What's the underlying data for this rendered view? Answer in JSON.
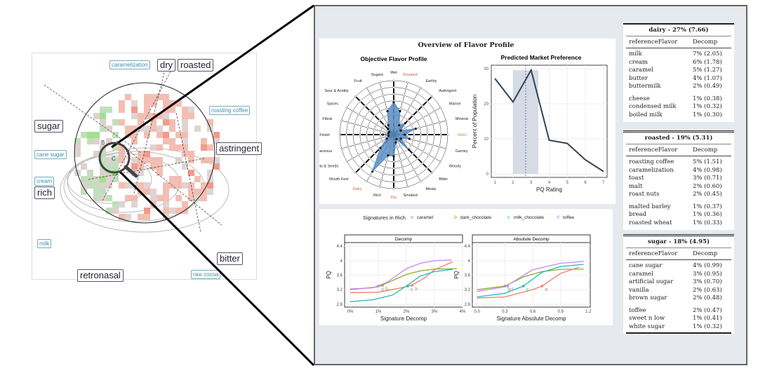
{
  "map": {
    "big_labels": [
      "dry",
      "roasted",
      "sugar",
      "astringent",
      "rich",
      "bitter",
      "retronasal"
    ],
    "small_labels": [
      "caramelization",
      "roasting coffee",
      "cane sugar",
      "cream",
      "milk",
      "raw cocoa"
    ],
    "cluster_labels": [
      "B",
      "C"
    ]
  },
  "panel": {
    "title": "Overview of Flavor Profile"
  },
  "chart_data": [
    {
      "type": "radar",
      "title": "Objective Flavor Profile",
      "axes": [
        "Wet",
        "Roasted",
        "Earthy",
        "Astringent",
        "Marine",
        "Mineral",
        "Retro Nasal",
        "Gamey",
        "Woody",
        "Bitter",
        "Meaty",
        "Smoked",
        "Dry",
        "Rich",
        "Dairy",
        "Mouth Feel",
        "Nuts & Seeds",
        "Herb-baceous",
        "Cold Finish",
        "Fibral",
        "Spices",
        "Sour & Acidity",
        "Fruit",
        "Sugars"
      ],
      "highlighted_axes": {
        "Roasted": "#d9534f",
        "Dry": "#d9534f",
        "Dairy": "#d9534f",
        "Retro Nasal": "#5cc23c"
      },
      "values": [
        0.6,
        0.45,
        0.2,
        0.3,
        0.15,
        0.42,
        0.2,
        0.3,
        0.15,
        0.4,
        0.1,
        0.15,
        0.4,
        0.4,
        0.79,
        0.35,
        0.15,
        0.1,
        0.2,
        0.1,
        0.1,
        0.15,
        0.2,
        0.45
      ],
      "fill": "#5b8fc4"
    },
    {
      "type": "line",
      "title": "Predicted Market Preference",
      "xlabel": "PQ Rating",
      "ylabel": "Percent of Population",
      "x": [
        1,
        2,
        3,
        4,
        5,
        6,
        7
      ],
      "y": [
        27.2,
        20.5,
        29.6,
        9.6,
        8.7,
        4.0,
        0.7
      ],
      "xlim": [
        0.8,
        7.2
      ],
      "ylim": [
        -1,
        31
      ],
      "xticks": [
        1,
        2,
        3,
        4,
        5,
        6,
        7
      ],
      "yticks": [
        0,
        10,
        20,
        30
      ],
      "band": [
        2,
        3.4
      ],
      "dashed_x": 2.7,
      "grid": true,
      "color": "#2f4358"
    },
    {
      "type": "line",
      "facet": "Decomp",
      "xlabel": "Signature Decomp",
      "ylabel": "PQ",
      "xlim": [
        -0.2,
        4.0
      ],
      "ylim": [
        2.72,
        4.5
      ],
      "xticks": [
        "0%",
        "1%",
        "2%",
        "3%",
        "4%"
      ],
      "xtick_values": [
        0,
        1,
        2,
        3,
        4
      ],
      "yticks": [
        2.8,
        3.2,
        3.6,
        4.0,
        4.4
      ],
      "series": [
        {
          "name": "caramel",
          "key": "a",
          "color": "#f07c6c",
          "points": [
            [
              0,
              3.12
            ],
            [
              1,
              3.13
            ],
            [
              1.8,
              3.25
            ],
            [
              2.2,
              3.33
            ],
            [
              2.6,
              3.5
            ],
            [
              3,
              3.75
            ],
            [
              3.65,
              3.97
            ]
          ],
          "marker": [
            2.2,
            3.32
          ]
        },
        {
          "name": "dark_chocolate",
          "key": "b",
          "color": "#8fae2a",
          "points": [
            [
              0,
              3.2
            ],
            [
              1,
              3.28
            ],
            [
              1.5,
              3.45
            ],
            [
              2,
              3.62
            ],
            [
              2.5,
              3.72
            ],
            [
              3,
              3.77
            ],
            [
              3.8,
              3.78
            ]
          ],
          "marker": [
            1.15,
            3.32
          ]
        },
        {
          "name": "milk_chocolate",
          "key": "c",
          "color": "#1fbab8",
          "points": [
            [
              0,
              2.87
            ],
            [
              0.8,
              2.92
            ],
            [
              1.5,
              3.05
            ],
            [
              2,
              3.3
            ],
            [
              2.5,
              3.58
            ],
            [
              3,
              3.7
            ],
            [
              3.65,
              3.76
            ]
          ],
          "marker": [
            2.05,
            3.3
          ]
        },
        {
          "name": "toffee",
          "key": "d",
          "color": "#c387f0",
          "points": [
            [
              0,
              3.22
            ],
            [
              0.8,
              3.25
            ],
            [
              1.3,
              3.4
            ],
            [
              2,
              3.78
            ],
            [
              2.5,
              3.93
            ],
            [
              3,
              4.0
            ],
            [
              3.6,
              4.02
            ]
          ],
          "marker": [
            1.0,
            3.3
          ]
        }
      ]
    },
    {
      "type": "line",
      "facet": "Absolute Decomp",
      "xlabel": "Signature Absolute Decomp",
      "ylabel": "PQ",
      "xlim": [
        -0.05,
        1.22
      ],
      "ylim": [
        2.72,
        4.5
      ],
      "xticks": [
        "0.0",
        "0.3",
        "0.6",
        "0.9",
        "1.2"
      ],
      "xtick_values": [
        0,
        0.3,
        0.6,
        0.9,
        1.2
      ],
      "yticks": [
        2.8,
        3.2,
        3.6,
        4.0,
        4.4
      ],
      "series": [
        {
          "name": "caramel",
          "key": "a",
          "color": "#f07c6c",
          "points": [
            [
              0,
              2.97
            ],
            [
              0.3,
              3.0
            ],
            [
              0.6,
              3.2
            ],
            [
              0.7,
              3.3
            ],
            [
              0.9,
              3.65
            ],
            [
              1.1,
              3.82
            ]
          ],
          "marker": [
            0.7,
            3.3
          ]
        },
        {
          "name": "dark_chocolate",
          "key": "b",
          "color": "#8fae2a",
          "points": [
            [
              0,
              3.2
            ],
            [
              0.3,
              3.3
            ],
            [
              0.5,
              3.55
            ],
            [
              0.7,
              3.7
            ],
            [
              0.9,
              3.76
            ],
            [
              1.15,
              3.77
            ]
          ],
          "marker": [
            0.3,
            3.3
          ]
        },
        {
          "name": "milk_chocolate",
          "key": "c",
          "color": "#1fbab8",
          "points": [
            [
              0,
              3.0
            ],
            [
              0.3,
              3.1
            ],
            [
              0.5,
              3.3
            ],
            [
              0.7,
              3.68
            ],
            [
              0.9,
              3.84
            ],
            [
              1.15,
              3.9
            ]
          ],
          "marker": [
            0.5,
            3.3
          ]
        },
        {
          "name": "toffee",
          "key": "d",
          "color": "#c387f0",
          "points": [
            [
              0,
              3.15
            ],
            [
              0.3,
              3.28
            ],
            [
              0.6,
              3.75
            ],
            [
              0.9,
              3.93
            ],
            [
              1.15,
              3.98
            ]
          ],
          "marker": [
            0.33,
            3.3
          ]
        }
      ]
    }
  ],
  "legend": {
    "title": "Signatures in Rich"
  },
  "tables": [
    {
      "title": "dairy - 27% (7.66)",
      "col1": "referenceFlavor",
      "col2": "Decomp",
      "rows": [
        [
          "milk",
          "7% (2.05)"
        ],
        [
          "cream",
          "6% (1.78)"
        ],
        [
          "caramel",
          "5% (1.27)"
        ],
        [
          "butter",
          "4% (1.07)"
        ],
        [
          "buttermilk",
          "2% (0.49)"
        ],
        [
          "cheese",
          "1% (0.38)"
        ],
        [
          "condensed milk",
          "1% (0.32)"
        ],
        [
          "boiled milk",
          "1% (0.30)"
        ]
      ]
    },
    {
      "title": "roasted - 19% (5.31)",
      "col1": "referenceFlavor",
      "col2": "Decomp",
      "rows": [
        [
          "roasting coffee",
          "5% (1.51)"
        ],
        [
          "caramelization",
          "4% (0.98)"
        ],
        [
          "toast",
          "3% (0.71)"
        ],
        [
          "malt",
          "2% (0.60)"
        ],
        [
          "roast nuts",
          "2% (0.45)"
        ],
        [
          "malted barley",
          "1% (0.37)"
        ],
        [
          "bread",
          "1% (0.36)"
        ],
        [
          "roasted wheat",
          "1% (0.33)"
        ]
      ]
    },
    {
      "title": "sugar - 18% (4.95)",
      "col1": "referenceFlavor",
      "col2": "Decomp",
      "rows": [
        [
          "cane sugar",
          "4% (0.99)"
        ],
        [
          "caramel",
          "3% (0.95)"
        ],
        [
          "artificial sugar",
          "3% (0.70)"
        ],
        [
          "vanilla",
          "2% (0.63)"
        ],
        [
          "brown sugar",
          "2% (0.48)"
        ],
        [
          "toffee",
          "2% (0.47)"
        ],
        [
          "sweet n low",
          "1% (0.41)"
        ],
        [
          "white sugar",
          "1% (0.32)"
        ]
      ]
    }
  ]
}
